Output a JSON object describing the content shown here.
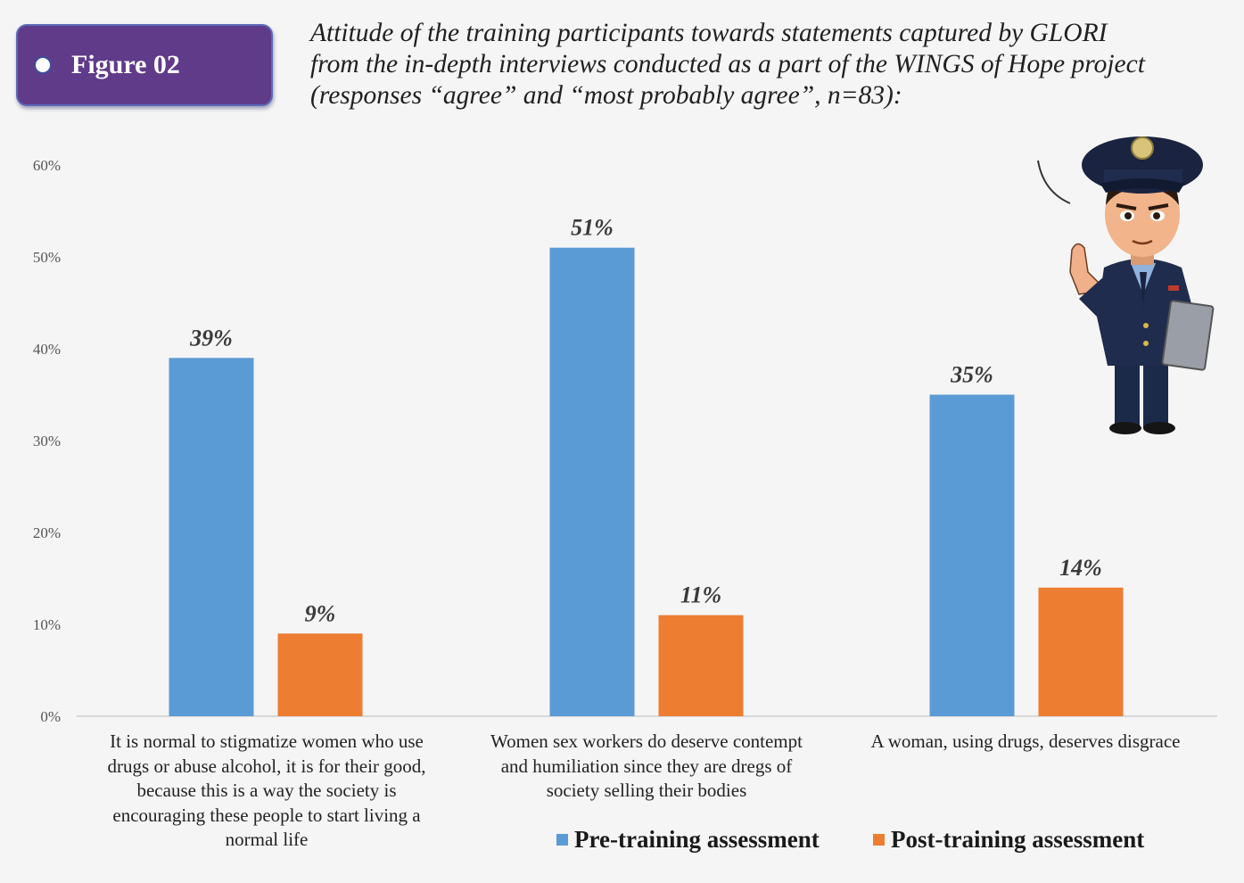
{
  "badge": {
    "label": "Figure 02"
  },
  "title_lines": [
    "Attitude of the training participants towards statements captured by GLORI",
    "from the in-depth interviews conducted as a part of the WINGS of Hope project",
    "(responses “agree” and “most probably agree”, n=83):"
  ],
  "colors": {
    "pre": "#5b9bd5",
    "post": "#ed7d31",
    "badge": "#603b8a"
  },
  "chart_data": {
    "type": "bar",
    "title": "Attitude of the training participants towards statements captured by GLORI from the in-depth interviews conducted as a part of the WINGS of Hope project (responses “agree” and “most probably agree”, n=83):",
    "categories": [
      "It is normal to stigmatize women who use drugs or abuse alcohol, it is for their good, because this is a way the society is encouraging these people to start living a normal life",
      "Women sex workers do deserve contempt and humiliation since they are dregs of society selling their bodies",
      "A woman, using drugs, deserves disgrace"
    ],
    "category_lines": [
      [
        "It is normal to stigmatize women who use",
        "drugs or abuse alcohol, it is for their good,",
        "because this is a way the society is",
        "encouraging these people to start living a",
        "normal life"
      ],
      [
        "Women sex workers do deserve contempt",
        "and humiliation since they are dregs of",
        "society selling their bodies"
      ],
      [
        "A woman, using drugs, deserves disgrace"
      ]
    ],
    "series": [
      {
        "name": "Pre-training assessment",
        "values": [
          39,
          51,
          35
        ],
        "labels": [
          "39%",
          "51%",
          "35%"
        ]
      },
      {
        "name": "Post-training assessment",
        "values": [
          9,
          11,
          14
        ],
        "labels": [
          "9%",
          "11%",
          "14%"
        ]
      }
    ],
    "y_ticks": [
      "0%",
      "10%",
      "20%",
      "30%",
      "40%",
      "50%",
      "60%"
    ],
    "ylim": [
      0,
      60
    ],
    "grid": false,
    "legend_position": "bottom"
  }
}
